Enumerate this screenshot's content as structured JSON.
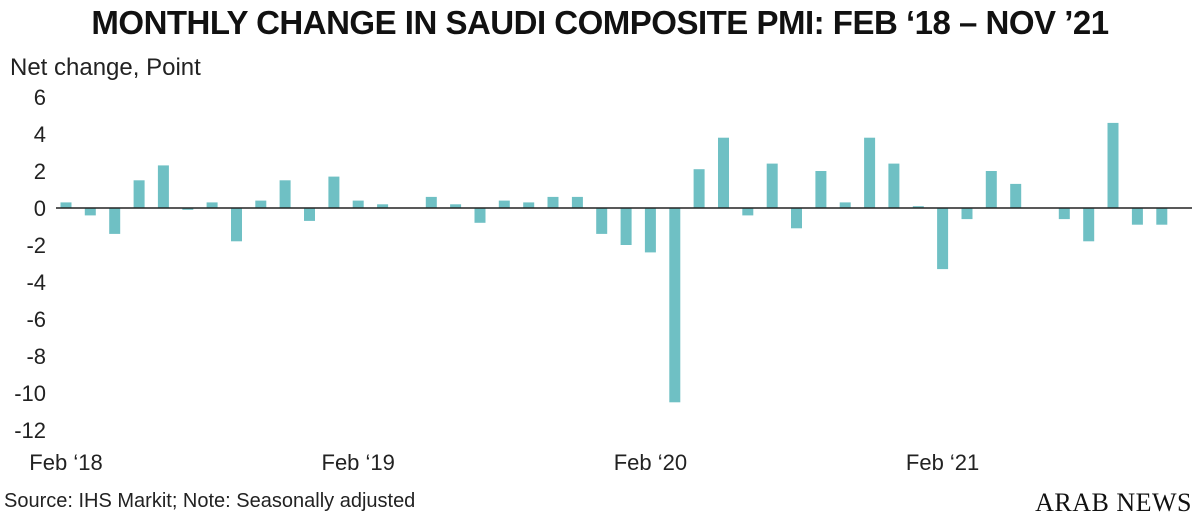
{
  "title": "MONTHLY CHANGE IN SAUDI COMPOSITE PMI: FEB ‘18 – NOV ’21",
  "source": "Source: IHS Markit; Note: Seasonally adjusted",
  "brand": "ARAB NEWS",
  "colors": {
    "bar": "#6fc0c4",
    "axis": "#222222"
  },
  "chart_data": {
    "type": "bar",
    "title": "MONTHLY CHANGE IN SAUDI COMPOSITE PMI: FEB ‘18 – NOV ’21",
    "ylabel": "Net change, Point",
    "xlabel": "",
    "ylim": [
      -12,
      6
    ],
    "y_ticks": [
      6,
      4,
      2,
      0,
      -2,
      -4,
      -6,
      -8,
      -10,
      -12
    ],
    "grid": false,
    "x_tick_labels": [
      {
        "label": "Feb ‘18",
        "index": 0
      },
      {
        "label": "Feb ‘19",
        "index": 12
      },
      {
        "label": "Feb ‘20",
        "index": 24
      },
      {
        "label": "Feb ‘21",
        "index": 36
      }
    ],
    "categories": [
      "Feb 18",
      "Mar 18",
      "Apr 18",
      "May 18",
      "Jun 18",
      "Jul 18",
      "Aug 18",
      "Sep 18",
      "Oct 18",
      "Nov 18",
      "Dec 18",
      "Jan 19",
      "Feb 19",
      "Mar 19",
      "Apr 19",
      "May 19",
      "Jun 19",
      "Jul 19",
      "Aug 19",
      "Sep 19",
      "Oct 19",
      "Nov 19",
      "Dec 19",
      "Jan 20",
      "Feb 20",
      "Mar 20",
      "Apr 20",
      "May 20",
      "Jun 20",
      "Jul 20",
      "Aug 20",
      "Sep 20",
      "Oct 20",
      "Nov 20",
      "Dec 20",
      "Jan 21",
      "Feb 21",
      "Mar 21",
      "Apr 21",
      "May 21",
      "Jun 21",
      "Jul 21",
      "Aug 21",
      "Sep 21",
      "Oct 21",
      "Nov 21"
    ],
    "values": [
      0.3,
      -0.4,
      -1.4,
      1.5,
      2.3,
      -0.1,
      0.3,
      -1.8,
      0.4,
      1.5,
      -0.7,
      1.7,
      0.4,
      0.2,
      0.0,
      0.6,
      0.2,
      -0.8,
      0.4,
      0.3,
      0.6,
      0.6,
      -1.4,
      -2.0,
      -2.4,
      -10.5,
      2.1,
      3.8,
      -0.4,
      2.4,
      -1.1,
      2.0,
      0.3,
      3.8,
      2.4,
      0.1,
      -3.3,
      -0.6,
      2.0,
      1.3,
      0.0,
      -0.6,
      -1.8,
      4.6,
      -0.9,
      -0.9
    ]
  }
}
